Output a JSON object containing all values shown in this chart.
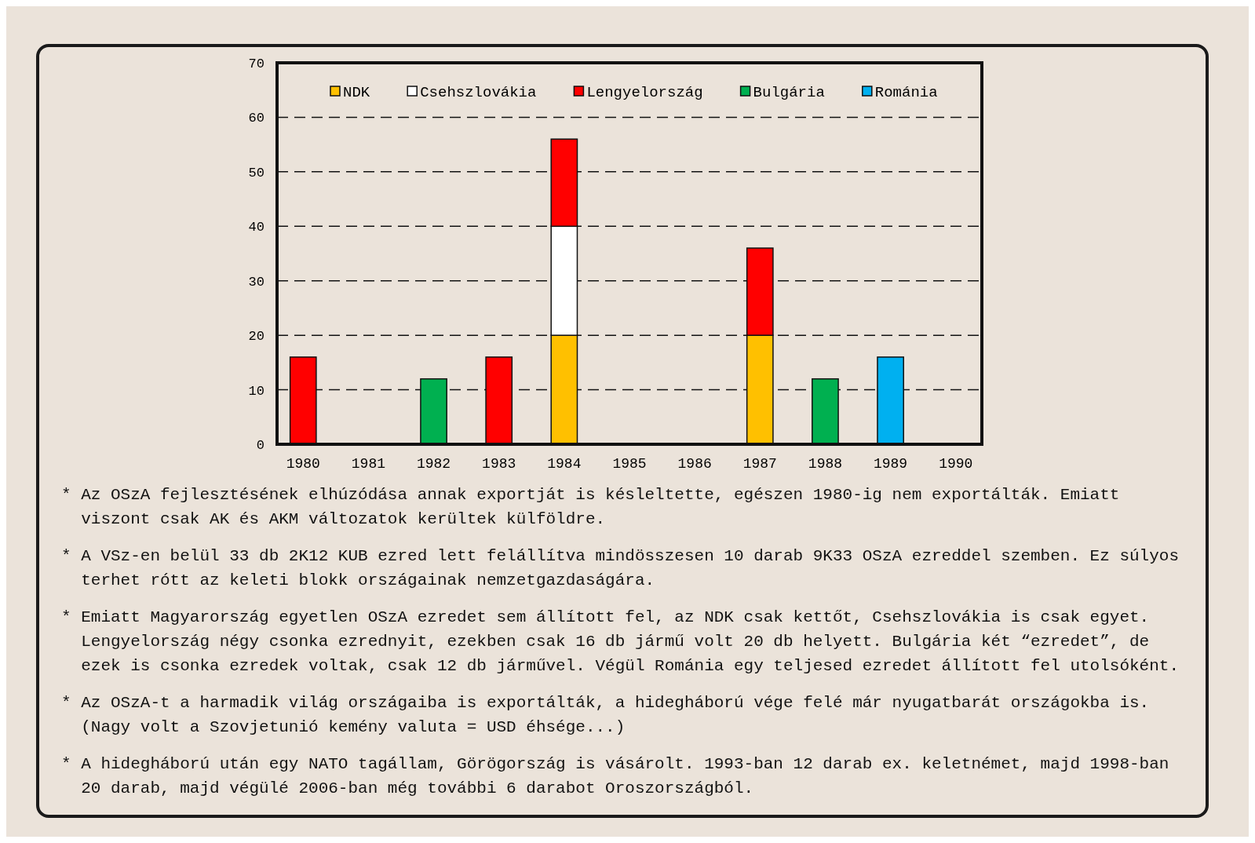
{
  "chart_data": {
    "type": "bar",
    "stacked": true,
    "categories": [
      "1980",
      "1981",
      "1982",
      "1983",
      "1984",
      "1985",
      "1986",
      "1987",
      "1988",
      "1989",
      "1990"
    ],
    "series": [
      {
        "name": "NDK",
        "color": "#ffc000",
        "values": [
          null,
          null,
          null,
          null,
          20,
          null,
          null,
          20,
          null,
          null,
          null
        ]
      },
      {
        "name": "Csehszlovákia",
        "color": "#ffffff",
        "values": [
          null,
          null,
          null,
          null,
          20,
          null,
          null,
          null,
          null,
          null,
          null
        ]
      },
      {
        "name": "Lengyelország",
        "color": "#ff0000",
        "values": [
          16,
          null,
          null,
          16,
          16,
          null,
          null,
          16,
          null,
          null,
          null
        ]
      },
      {
        "name": "Bulgária",
        "color": "#00b050",
        "values": [
          null,
          null,
          12,
          null,
          null,
          null,
          null,
          null,
          12,
          null,
          null
        ]
      },
      {
        "name": "Románia",
        "color": "#00b0f0",
        "values": [
          null,
          null,
          null,
          null,
          null,
          null,
          null,
          null,
          null,
          16,
          null
        ]
      }
    ],
    "ylim": [
      0,
      70
    ],
    "yticks": [
      0,
      10,
      20,
      30,
      40,
      50,
      60,
      70
    ],
    "grid": "y",
    "legend": "top",
    "annotations": [
      "* Az OSzA fejlesztésének elhúzódása annak exportját is késleltette, egészen 1980-ig nem exportálták. Emiatt viszont csak AK és AKM változatok kerültek külföldre.",
      "* A VSz-en belül 33 db 2K12 KUB ezred lett felállítva mindösszesen 10 darab 9K33 OSzA ezreddel szemben. Ez súlyos terhet rótt az keleti blokk országainak nemzetgazdaságára.",
      "* Emiatt Magyarország egyetlen OSzA ezredet sem állított fel, az NDK csak kettőt, Csehszlovákia is csak egyet. Lengyelország négy csonka ezrednyit, ezekben csak 16 db jármű volt 20 db helyett. Bulgária két “ezredet”, de ezek is csonka ezredek voltak, csak 12 db járművel. Végül Románia egy teljesed ezredet állított fel utolsóként.",
      "* Az OSzA-t a harmadik világ országaiba is exportálták, a hidegháború vége felé már nyugatbarát országokba is. (Nagy volt a Szovjetunió kemény valuta = USD éhsége...)",
      "* A hidegháború után egy NATO tagállam, Görögország is vásárolt. 1993-ban 12 darab ex. keletnémet, majd 1998-ban 20 darab, majd végülé 2006-ban még további 6 darabot Oroszországból."
    ]
  }
}
